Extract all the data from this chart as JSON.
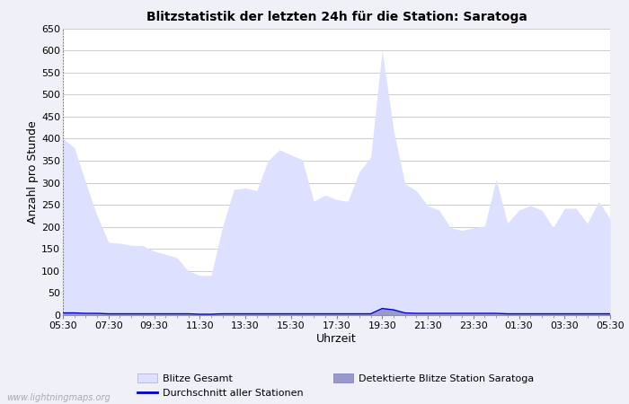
{
  "title": "Blitzstatistik der letzten 24h für die Station: Saratoga",
  "xlabel": "Uhrzeit",
  "ylabel": "Anzahl pro Stunde",
  "watermark": "www.lightningmaps.org",
  "legend_entries": [
    "Blitze Gesamt",
    "Durchschnitt aller Stationen",
    "Detektierte Blitze Station Saratoga"
  ],
  "fill_color_gesamt": "#dde0ff",
  "fill_color_station": "#9999cc",
  "line_color_avg": "#0000cc",
  "bg_color": "#f0f0f8",
  "plot_bg_color": "#ffffff",
  "ylim": [
    0,
    650
  ],
  "yticks": [
    0,
    50,
    100,
    150,
    200,
    250,
    300,
    350,
    400,
    450,
    500,
    550,
    600,
    650
  ],
  "xtick_labels": [
    "05:30",
    "07:30",
    "09:30",
    "11:30",
    "13:30",
    "15:30",
    "17:30",
    "19:30",
    "21:30",
    "23:30",
    "01:30",
    "03:30",
    "05:30"
  ],
  "gesamt_values": [
    400,
    380,
    300,
    225,
    165,
    163,
    158,
    158,
    145,
    138,
    130,
    100,
    90,
    90,
    200,
    285,
    288,
    282,
    350,
    375,
    363,
    352,
    258,
    272,
    262,
    258,
    325,
    358,
    600,
    420,
    298,
    282,
    248,
    238,
    198,
    192,
    198,
    202,
    308,
    208,
    238,
    248,
    238,
    198,
    242,
    242,
    208,
    258,
    218
  ],
  "station_values": [
    5,
    5,
    4,
    4,
    3,
    3,
    3,
    3,
    3,
    3,
    3,
    3,
    2,
    2,
    3,
    3,
    3,
    3,
    3,
    3,
    3,
    3,
    3,
    3,
    3,
    3,
    3,
    3,
    15,
    12,
    5,
    4,
    4,
    4,
    4,
    4,
    4,
    4,
    4,
    3,
    3,
    3,
    3,
    3,
    3,
    3,
    3,
    3,
    3
  ],
  "avg_values": [
    5,
    5,
    4,
    4,
    3,
    3,
    3,
    3,
    3,
    3,
    3,
    3,
    2,
    2,
    3,
    3,
    3,
    3,
    3,
    3,
    3,
    3,
    3,
    3,
    3,
    3,
    3,
    3,
    15,
    12,
    5,
    4,
    4,
    4,
    4,
    4,
    4,
    4,
    4,
    3,
    3,
    3,
    3,
    3,
    3,
    3,
    3,
    3,
    3
  ]
}
